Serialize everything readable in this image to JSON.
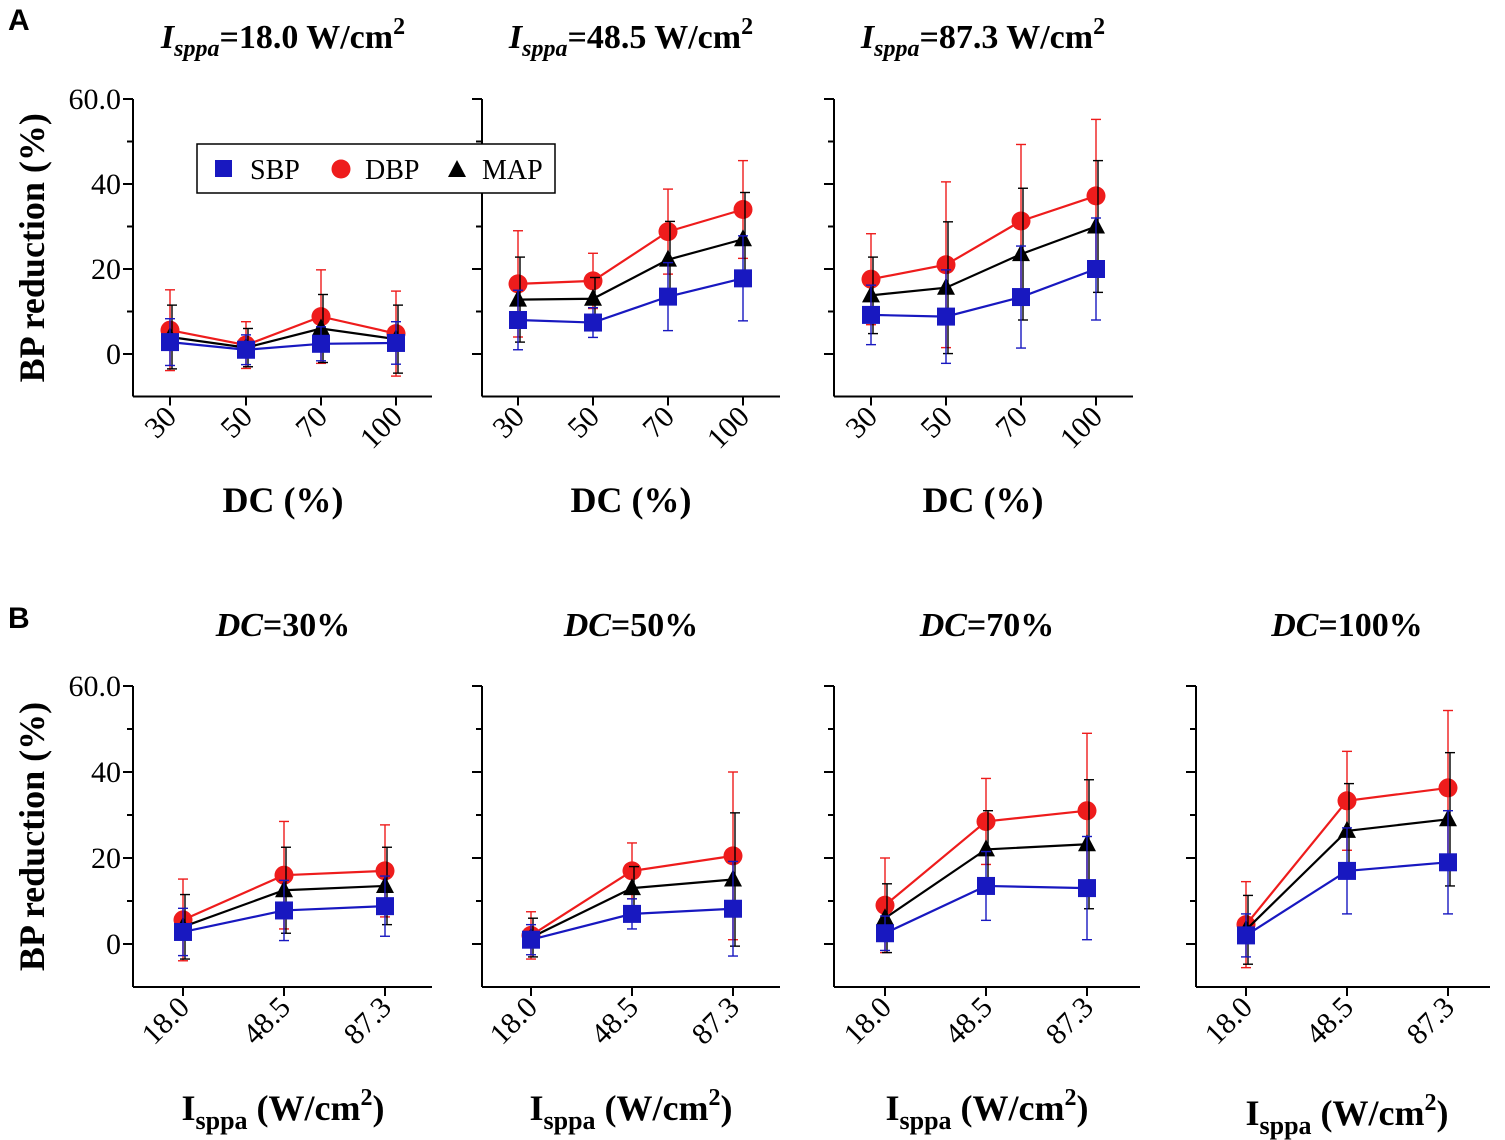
{
  "panel_labels": {
    "a": "A",
    "b": "B"
  },
  "colors": {
    "SBP": "#1818c0",
    "DBP": "#ee1c1c",
    "MAP": "#000000"
  },
  "legend": {
    "sbp": "SBP",
    "dbp": "DBP",
    "map": "MAP"
  },
  "chart_data": [
    {
      "type": "line",
      "title_var": "I",
      "title_sub": "sppa",
      "title_rest": "=18.0 W/cm",
      "title_sup": "2",
      "xlabel": "DC (%)",
      "ylabel": "BP reduction (%)",
      "categories": [
        "30",
        "50",
        "70",
        "100"
      ],
      "ylim": [
        -10,
        60
      ],
      "yticks": [
        0,
        20,
        40,
        60
      ],
      "series": [
        {
          "name": "SBP",
          "values": [
            2.8,
            1.0,
            2.4,
            2.6
          ],
          "errors": [
            5.5,
            3.5,
            4.0,
            5.0
          ]
        },
        {
          "name": "DBP",
          "values": [
            5.6,
            2.1,
            8.8,
            4.8
          ],
          "errors": [
            9.5,
            5.5,
            11.0,
            10.0
          ]
        },
        {
          "name": "MAP",
          "values": [
            4.0,
            1.5,
            6.0,
            3.5
          ],
          "errors": [
            7.5,
            4.5,
            8.0,
            8.0
          ]
        }
      ]
    },
    {
      "type": "line",
      "title_var": "I",
      "title_sub": "sppa",
      "title_rest": "=48.5 W/cm",
      "title_sup": "2",
      "xlabel": "DC (%)",
      "ylabel": "",
      "categories": [
        "30",
        "50",
        "70",
        "100"
      ],
      "ylim": [
        -10,
        60
      ],
      "yticks": [],
      "series": [
        {
          "name": "SBP",
          "values": [
            8.0,
            7.4,
            13.5,
            17.8
          ],
          "errors": [
            7.0,
            3.5,
            8.0,
            10.0
          ]
        },
        {
          "name": "DBP",
          "values": [
            16.5,
            17.2,
            28.8,
            34.0
          ],
          "errors": [
            12.5,
            6.5,
            10.0,
            11.5
          ]
        },
        {
          "name": "MAP",
          "values": [
            12.8,
            13.0,
            22.2,
            27.0
          ],
          "errors": [
            10.0,
            5.0,
            9.0,
            11.0
          ]
        }
      ]
    },
    {
      "type": "line",
      "title_var": "I",
      "title_sub": "sppa",
      "title_rest": "=87.3 W/cm",
      "title_sup": "2",
      "xlabel": "DC (%)",
      "ylabel": "",
      "categories": [
        "30",
        "50",
        "70",
        "100"
      ],
      "ylim": [
        -10,
        60
      ],
      "yticks": [],
      "series": [
        {
          "name": "SBP",
          "values": [
            9.2,
            8.8,
            13.4,
            20.0
          ],
          "errors": [
            7.0,
            11.0,
            12.0,
            12.0
          ]
        },
        {
          "name": "DBP",
          "values": [
            17.6,
            21.0,
            31.3,
            37.2
          ],
          "errors": [
            10.7,
            19.5,
            18.0,
            18.0
          ]
        },
        {
          "name": "MAP",
          "values": [
            13.8,
            15.6,
            23.5,
            30.0
          ],
          "errors": [
            9.0,
            15.5,
            15.5,
            15.5
          ]
        }
      ]
    },
    {
      "type": "line",
      "title_var": "DC",
      "title_rest": "=30%",
      "xlabel_main": "I",
      "xlabel_sub": "sppa",
      "xlabel_rest": " (W/cm",
      "xlabel_sup": "2",
      "xlabel_end": ")",
      "ylabel": "BP reduction (%)",
      "categories": [
        "18.0",
        "48.5",
        "87.3"
      ],
      "ylim": [
        -10,
        60
      ],
      "yticks": [
        0,
        20,
        40,
        60
      ],
      "series": [
        {
          "name": "SBP",
          "values": [
            2.8,
            7.8,
            8.8
          ],
          "errors": [
            5.5,
            7.0,
            7.0
          ]
        },
        {
          "name": "DBP",
          "values": [
            5.6,
            16.0,
            17.0
          ],
          "errors": [
            9.5,
            12.5,
            10.7
          ]
        },
        {
          "name": "MAP",
          "values": [
            4.0,
            12.5,
            13.5
          ],
          "errors": [
            7.5,
            10.0,
            9.0
          ]
        }
      ]
    },
    {
      "type": "line",
      "title_var": "DC",
      "title_rest": "=50%",
      "xlabel_main": "I",
      "xlabel_sub": "sppa",
      "xlabel_rest": " (W/cm",
      "xlabel_sup": "2",
      "xlabel_end": ")",
      "ylabel": "",
      "categories": [
        "18.0",
        "48.5",
        "87.3"
      ],
      "ylim": [
        -10,
        60
      ],
      "yticks": [],
      "series": [
        {
          "name": "SBP",
          "values": [
            1.0,
            7.0,
            8.2
          ],
          "errors": [
            3.5,
            3.5,
            11.0
          ]
        },
        {
          "name": "DBP",
          "values": [
            2.0,
            17.0,
            20.5
          ],
          "errors": [
            5.5,
            6.5,
            19.5
          ]
        },
        {
          "name": "MAP",
          "values": [
            1.5,
            13.0,
            15.0
          ],
          "errors": [
            4.5,
            5.0,
            15.5
          ]
        }
      ]
    },
    {
      "type": "line",
      "title_var": "DC",
      "title_rest": "=70%",
      "xlabel_main": "I",
      "xlabel_sub": "sppa",
      "xlabel_rest": " (W/cm",
      "xlabel_sup": "2",
      "xlabel_end": ")",
      "ylabel": "",
      "categories": [
        "18.0",
        "48.5",
        "87.3"
      ],
      "ylim": [
        -10,
        60
      ],
      "yticks": [],
      "series": [
        {
          "name": "SBP",
          "values": [
            2.5,
            13.5,
            13.0
          ],
          "errors": [
            4.0,
            8.0,
            12.0
          ]
        },
        {
          "name": "DBP",
          "values": [
            9.0,
            28.5,
            31.0
          ],
          "errors": [
            11.0,
            10.0,
            18.0
          ]
        },
        {
          "name": "MAP",
          "values": [
            6.0,
            22.0,
            23.2
          ],
          "errors": [
            8.0,
            9.0,
            15.0
          ]
        }
      ]
    },
    {
      "type": "line",
      "title_var": "DC",
      "title_rest": "=100%",
      "xlabel_main": "I",
      "xlabel_sub": "sppa",
      "xlabel_rest": " (W/cm",
      "xlabel_sup": "2",
      "xlabel_end": ")",
      "ylabel": "",
      "categories": [
        "18.0",
        "48.5",
        "87.3"
      ],
      "ylim": [
        -10,
        60
      ],
      "yticks": [],
      "series": [
        {
          "name": "SBP",
          "values": [
            2.0,
            17.0,
            19.0
          ],
          "errors": [
            5.0,
            10.0,
            12.0
          ]
        },
        {
          "name": "DBP",
          "values": [
            4.5,
            33.3,
            36.3
          ],
          "errors": [
            10.0,
            11.5,
            18.0
          ]
        },
        {
          "name": "MAP",
          "values": [
            3.3,
            26.3,
            29.0
          ],
          "errors": [
            8.0,
            11.0,
            15.5
          ]
        }
      ]
    }
  ]
}
